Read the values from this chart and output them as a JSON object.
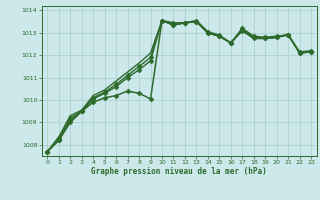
{
  "title": "Graphe pression niveau de la mer (hPa)",
  "background_color": "#cce8ea",
  "grid_color": "#aacccc",
  "line_color": "#2d6b2d",
  "marker_color": "#2d6b2d",
  "xlim": [
    -0.5,
    23.5
  ],
  "ylim": [
    1007.5,
    1014.2
  ],
  "yticks": [
    1008,
    1009,
    1010,
    1011,
    1012,
    1013,
    1014
  ],
  "xticks": [
    0,
    1,
    2,
    3,
    4,
    5,
    6,
    7,
    8,
    9,
    10,
    11,
    12,
    13,
    14,
    15,
    16,
    17,
    18,
    19,
    20,
    21,
    22,
    23
  ],
  "series": [
    {
      "x": [
        0,
        1,
        2,
        3,
        4,
        5,
        6,
        7,
        8,
        9,
        10,
        11,
        12,
        13,
        14,
        15,
        16,
        17,
        18,
        19,
        20,
        21,
        22,
        23
      ],
      "y": [
        1007.7,
        1008.2,
        1009.0,
        1009.5,
        1009.9,
        1010.1,
        1010.2,
        1010.4,
        1010.3,
        1010.05,
        1013.55,
        1013.45,
        1013.45,
        1013.55,
        1013.05,
        1012.9,
        1012.55,
        1013.2,
        1012.85,
        1012.8,
        1012.85,
        1012.9,
        1012.15,
        1012.2
      ],
      "marker": "D",
      "markersize": 2.5,
      "linewidth": 1.1,
      "linestyle": "-"
    },
    {
      "x": [
        0,
        1,
        2,
        3,
        4,
        5,
        6,
        7,
        8,
        9,
        10,
        11,
        12,
        13,
        14,
        15,
        16,
        17,
        18,
        19,
        20,
        21,
        22,
        23
      ],
      "y": [
        1007.7,
        1008.2,
        1009.1,
        1009.5,
        1010.05,
        1010.3,
        1010.6,
        1011.0,
        1011.35,
        1011.75,
        1013.55,
        1013.35,
        1013.45,
        1013.5,
        1013.0,
        1012.85,
        1012.55,
        1013.15,
        1012.8,
        1012.75,
        1012.8,
        1012.9,
        1012.1,
        1012.15
      ],
      "marker": "D",
      "markersize": 2.5,
      "linewidth": 1.0,
      "linestyle": "-"
    },
    {
      "x": [
        0,
        1,
        2,
        3,
        4,
        5,
        6,
        7,
        8,
        9,
        10,
        11,
        12,
        13,
        14,
        15,
        16,
        17,
        18,
        19,
        20,
        21,
        22,
        23
      ],
      "y": [
        1007.7,
        1008.3,
        1009.2,
        1009.5,
        1010.1,
        1010.35,
        1010.7,
        1011.1,
        1011.5,
        1011.9,
        1013.55,
        1013.35,
        1013.45,
        1013.5,
        1013.0,
        1012.85,
        1012.55,
        1013.1,
        1012.75,
        1012.75,
        1012.8,
        1012.92,
        1012.1,
        1012.15
      ],
      "marker": "D",
      "markersize": 2.5,
      "linewidth": 1.0,
      "linestyle": "-"
    },
    {
      "x": [
        0,
        1,
        2,
        3,
        4,
        5,
        6,
        7,
        8,
        9,
        10,
        11,
        12,
        13,
        14,
        15,
        16,
        17,
        18,
        19,
        20,
        21,
        22,
        23
      ],
      "y": [
        1007.7,
        1008.35,
        1009.3,
        1009.55,
        1010.2,
        1010.45,
        1010.85,
        1011.25,
        1011.65,
        1012.1,
        1013.55,
        1013.35,
        1013.45,
        1013.5,
        1013.0,
        1012.85,
        1012.55,
        1013.1,
        1012.75,
        1012.75,
        1012.8,
        1012.95,
        1012.1,
        1012.15
      ],
      "marker": null,
      "markersize": 0,
      "linewidth": 1.0,
      "linestyle": "-"
    }
  ]
}
